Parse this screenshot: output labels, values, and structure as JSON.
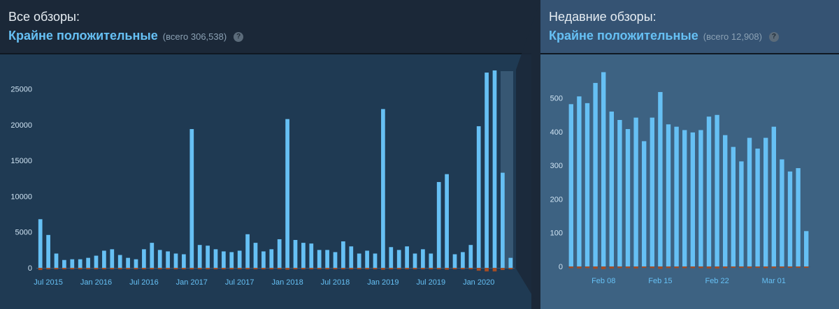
{
  "all_reviews": {
    "label": "Все обзоры:",
    "summary": "Крайне положительные",
    "total": "(всего 306,538)",
    "help": "?"
  },
  "recent_reviews": {
    "label": "Недавние обзоры:",
    "summary": "Крайне положительные",
    "total": "(всего 12,908)",
    "help": "?"
  },
  "colors": {
    "positive": "#66c0f4",
    "negative": "#a34c25",
    "axis_text": "#cfe3f2",
    "tick_text": "#66c0f4"
  },
  "chart_data": [
    {
      "type": "bar",
      "title": "",
      "ylim": [
        0,
        27500
      ],
      "yticks": [
        0,
        5000,
        10000,
        15000,
        20000,
        25000
      ],
      "x_tick_labels": [
        "Jul 2015",
        "Jan 2016",
        "Jul 2016",
        "Jan 2017",
        "Jul 2017",
        "Jan 2018",
        "Jul 2018",
        "Jan 2019",
        "Jul 2019",
        "Jan 2020"
      ],
      "x_tick_indices": [
        1,
        7,
        13,
        19,
        25,
        31,
        37,
        43,
        49,
        55
      ],
      "values": [
        6800,
        4600,
        2000,
        1100,
        1200,
        1200,
        1400,
        1700,
        2400,
        2600,
        1800,
        1400,
        1200,
        2600,
        3500,
        2500,
        2300,
        2000,
        1900,
        19400,
        3200,
        3100,
        2600,
        2300,
        2200,
        2400,
        4700,
        3500,
        2300,
        2600,
        4000,
        20800,
        3900,
        3500,
        3400,
        2500,
        2500,
        2200,
        3700,
        3000,
        2000,
        2400,
        2000,
        22200,
        2900,
        2500,
        3000,
        2000,
        2600,
        2000,
        12000,
        13100,
        1900,
        2200,
        3200,
        19800,
        27300,
        27600,
        13300,
        1400
      ],
      "negative_values": [
        300,
        200,
        100,
        50,
        50,
        50,
        60,
        80,
        100,
        100,
        80,
        60,
        50,
        100,
        150,
        100,
        100,
        80,
        80,
        200,
        150,
        150,
        120,
        100,
        100,
        100,
        180,
        150,
        100,
        100,
        150,
        250,
        150,
        150,
        150,
        100,
        100,
        100,
        150,
        120,
        80,
        100,
        80,
        250,
        120,
        100,
        120,
        80,
        100,
        80,
        200,
        250,
        80,
        100,
        150,
        400,
        500,
        500,
        300,
        80
      ]
    },
    {
      "type": "bar",
      "title": "",
      "ylim": [
        0,
        580
      ],
      "yticks": [
        0,
        100,
        200,
        300,
        400,
        500
      ],
      "x_tick_labels": [
        "Feb 08",
        "Feb 15",
        "Feb 22",
        "Mar 01"
      ],
      "x_tick_indices": [
        4,
        11,
        18,
        25
      ],
      "values": [
        482,
        505,
        485,
        545,
        577,
        460,
        435,
        408,
        442,
        372,
        442,
        518,
        422,
        415,
        405,
        398,
        405,
        445,
        450,
        390,
        355,
        312,
        382,
        350,
        382,
        415,
        318,
        282,
        292,
        105
      ],
      "negative_values": [
        5,
        6,
        5,
        7,
        8,
        6,
        5,
        5,
        6,
        4,
        5,
        7,
        5,
        5,
        5,
        5,
        5,
        6,
        6,
        5,
        4,
        4,
        5,
        4,
        5,
        5,
        4,
        3,
        4,
        2
      ]
    }
  ]
}
